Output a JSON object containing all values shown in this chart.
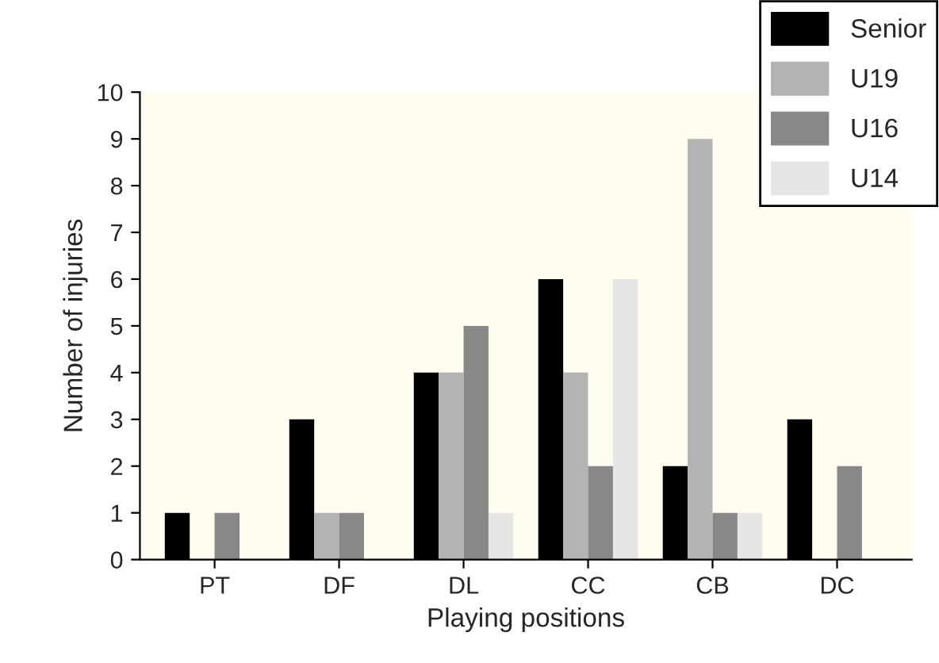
{
  "chart_data": {
    "type": "bar",
    "xlabel": "Playing positions",
    "ylabel": "Number of injuries",
    "categories": [
      "PT",
      "DF",
      "DL",
      "CC",
      "CB",
      "DC"
    ],
    "series": [
      {
        "name": "Senior",
        "color": "#000000",
        "values": [
          1,
          3,
          4,
          6,
          2,
          3
        ]
      },
      {
        "name": "U19",
        "color": "#b3b3b3",
        "values": [
          0,
          1,
          4,
          4,
          9,
          0
        ]
      },
      {
        "name": "U16",
        "color": "#888888",
        "values": [
          1,
          1,
          5,
          2,
          1,
          2
        ]
      },
      {
        "name": "U14",
        "color": "#e6e6e6",
        "values": [
          0,
          0,
          1,
          6,
          1,
          0
        ]
      }
    ],
    "ylim": [
      0,
      10
    ],
    "yticks": [
      0,
      1,
      2,
      3,
      4,
      5,
      6,
      7,
      8,
      9,
      10
    ],
    "grid": false,
    "legend": "top right"
  }
}
